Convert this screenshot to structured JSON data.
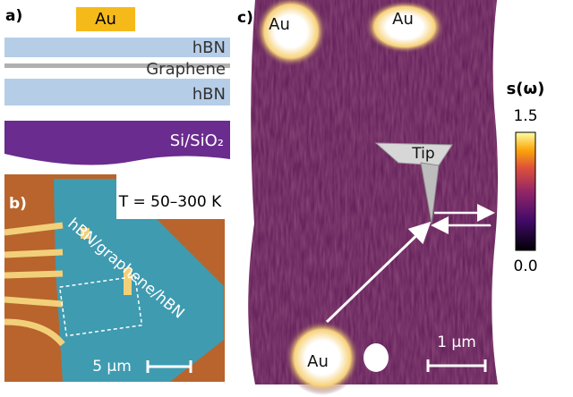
{
  "panel_a": {
    "label": "a)",
    "layers": [
      "Au",
      "hBN",
      "Graphene",
      "hBN",
      "Si/SiO₂"
    ]
  },
  "panel_b": {
    "label": "b)",
    "flake_label": "hBN/graphene/hBN",
    "temperature": "T = 50–300 K",
    "scale_bar": "5 µm"
  },
  "panel_c": {
    "label": "c)",
    "contacts": [
      "Au",
      "Au",
      "Au"
    ],
    "tip": "Tip",
    "colorbar": {
      "title": "s(ω)",
      "max": "1.5",
      "min": "0.0"
    },
    "scale_bar": "1 µm"
  }
}
